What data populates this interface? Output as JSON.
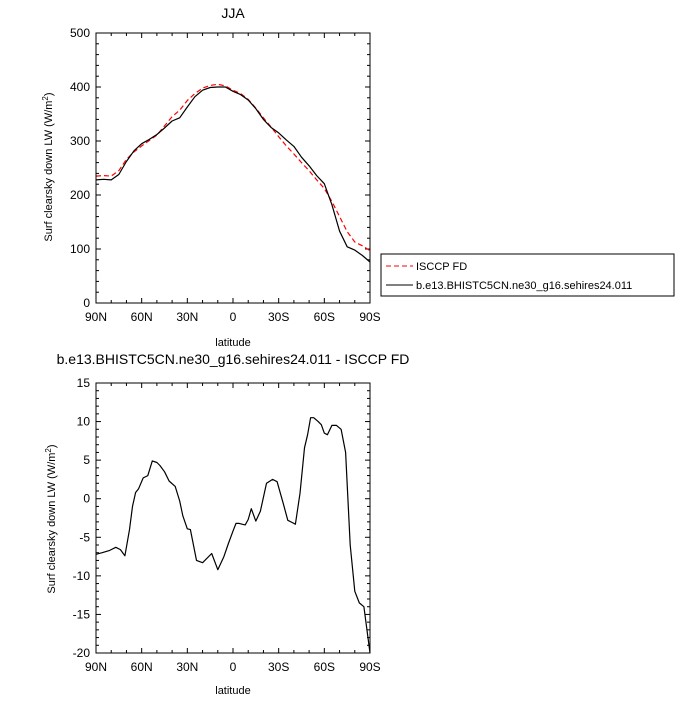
{
  "chart_data": [
    {
      "type": "line",
      "title": "JJA",
      "xlabel": "latitude",
      "ylabel": "Surf clearsky down LW (W/m",
      "ylabel_sup": "2",
      "ylabel_end": ")",
      "xlim": [
        90,
        -90
      ],
      "ylim": [
        0,
        500
      ],
      "yticks": [
        0,
        100,
        200,
        300,
        400,
        500
      ],
      "xticks": [
        90,
        60,
        30,
        0,
        -30,
        -60,
        -90
      ],
      "xtick_labels": [
        "90N",
        "60N",
        "30N",
        "0",
        "30S",
        "60S",
        "90S"
      ],
      "legend": {
        "placement": "outside-right"
      },
      "series": [
        {
          "name": "ISCCP FD",
          "color": "#ff0000",
          "style": "dashed",
          "x": [
            90,
            85,
            80,
            75,
            70,
            65,
            60,
            55,
            50,
            45,
            40,
            35,
            30,
            25,
            20,
            15,
            10,
            5,
            0,
            -5,
            -10,
            -15,
            -20,
            -25,
            -30,
            -35,
            -40,
            -45,
            -50,
            -55,
            -60,
            -65,
            -70,
            -75,
            -80,
            -85,
            -90
          ],
          "y": [
            235,
            236,
            235,
            245,
            266,
            280,
            291,
            301,
            311,
            328,
            345,
            357,
            375,
            388,
            398,
            403,
            405,
            402,
            394,
            388,
            377,
            361,
            343,
            326,
            308,
            291,
            276,
            260,
            245,
            228,
            212,
            188,
            160,
            132,
            113,
            106,
            97
          ]
        },
        {
          "name": "b.e13.BHISTC5CN.ne30_g16.sehires24.011",
          "color": "#000000",
          "style": "solid",
          "x": [
            90,
            85,
            80,
            75,
            70,
            65,
            60,
            55,
            50,
            45,
            40,
            35,
            30,
            25,
            20,
            15,
            10,
            5,
            0,
            -5,
            -10,
            -15,
            -20,
            -25,
            -30,
            -35,
            -40,
            -45,
            -50,
            -55,
            -60,
            -65,
            -70,
            -75,
            -80,
            -85,
            -90
          ],
          "y": [
            228,
            229,
            228,
            238,
            262,
            282,
            295,
            303,
            312,
            324,
            337,
            343,
            363,
            382,
            394,
            399,
            400,
            400,
            392,
            386,
            376,
            360,
            340,
            325,
            315,
            302,
            290,
            270,
            254,
            236,
            221,
            182,
            133,
            104,
            98,
            88,
            76
          ]
        }
      ]
    },
    {
      "type": "line",
      "title": "b.e13.BHISTC5CN.ne30_g16.sehires24.011 - ISCCP FD",
      "xlabel": "latitude",
      "ylabel": "Surf clearsky down LW (W/m",
      "ylabel_sup": "2",
      "ylabel_end": ")",
      "xlim": [
        90,
        -90
      ],
      "ylim": [
        -20,
        15
      ],
      "yticks": [
        -20,
        -15,
        -10,
        -5,
        0,
        5,
        10,
        15
      ],
      "xticks": [
        90,
        60,
        30,
        0,
        -30,
        -60,
        -90
      ],
      "xtick_labels": [
        "90N",
        "60N",
        "30N",
        "0",
        "30S",
        "60S",
        "90S"
      ],
      "series": [
        {
          "color": "#000000",
          "style": "solid",
          "x": [
            90,
            86,
            81,
            77,
            74,
            71,
            68,
            66,
            64,
            62,
            59,
            56,
            53,
            50,
            48,
            45,
            42,
            38,
            35,
            33,
            30,
            28,
            24,
            20,
            14,
            10,
            6,
            3,
            0,
            -2,
            -4,
            -6,
            -8,
            -10,
            -12,
            -15,
            -18,
            -22,
            -26,
            -29,
            -33,
            -36,
            -39,
            -41,
            -44,
            -47,
            -49,
            -51,
            -53,
            -56,
            -58,
            -60,
            -62,
            -65,
            -68,
            -71,
            -74,
            -77,
            -80,
            -83,
            -86,
            -90
          ],
          "y": [
            -7.2,
            -7.0,
            -6.7,
            -6.3,
            -6.6,
            -7.4,
            -4.0,
            -1.0,
            0.8,
            1.3,
            2.7,
            3.0,
            4.9,
            4.7,
            4.3,
            3.5,
            2.3,
            1.6,
            -0.3,
            -2.2,
            -3.9,
            -4.0,
            -8.0,
            -8.3,
            -7.1,
            -9.2,
            -7.5,
            -5.8,
            -4.2,
            -3.2,
            -3.2,
            -3.3,
            -3.4,
            -2.7,
            -1.3,
            -2.9,
            -1.6,
            2.0,
            2.5,
            2.2,
            -0.6,
            -2.8,
            -3.1,
            -3.3,
            0.7,
            6.6,
            8.3,
            10.5,
            10.5,
            10.0,
            9.6,
            8.5,
            8.3,
            9.5,
            9.5,
            9.0,
            6.0,
            -6.0,
            -12.0,
            -13.5,
            -14.0,
            -20.0
          ]
        }
      ]
    }
  ]
}
